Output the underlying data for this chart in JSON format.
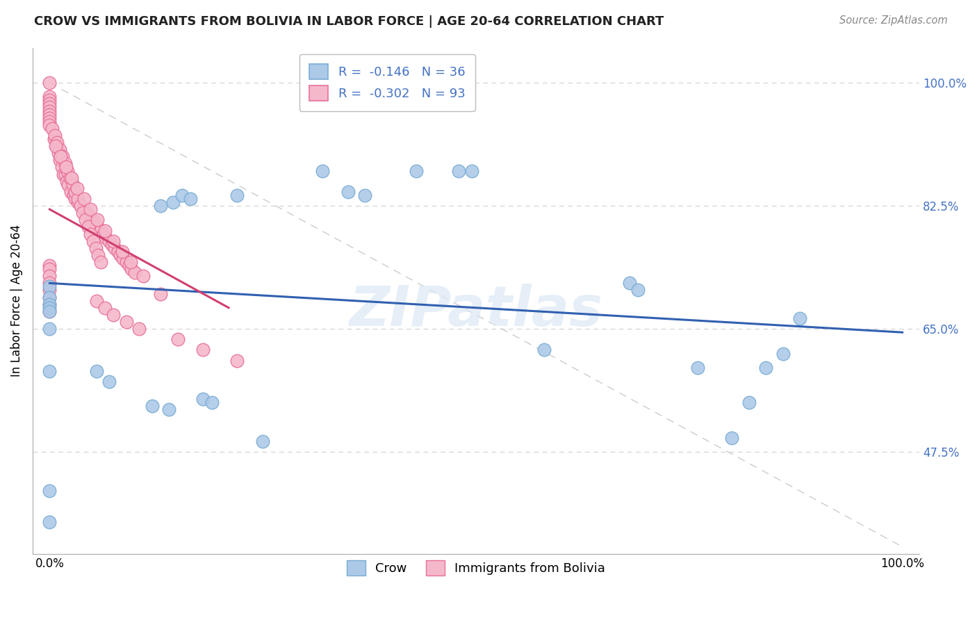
{
  "title": "CROW VS IMMIGRANTS FROM BOLIVIA IN LABOR FORCE | AGE 20-64 CORRELATION CHART",
  "source": "Source: ZipAtlas.com",
  "ylabel": "In Labor Force | Age 20-64",
  "xlim": [
    -0.02,
    1.02
  ],
  "ylim": [
    0.33,
    1.05
  ],
  "yticks": [
    0.475,
    0.65,
    0.825,
    1.0
  ],
  "ytick_labels": [
    "47.5%",
    "65.0%",
    "82.5%",
    "100.0%"
  ],
  "crow_R": -0.146,
  "crow_N": 36,
  "bolivia_R": -0.302,
  "bolivia_N": 93,
  "crow_color": "#adc9e8",
  "crow_edge_color": "#7aadd4",
  "bolivia_color": "#f5b8cb",
  "bolivia_edge_color": "#e87098",
  "trend_blue": "#3060b0",
  "trend_pink": "#d04070",
  "watermark": "ZIPatlas",
  "legend_label_crow": "Crow",
  "legend_label_bolivia": "Immigrants from Bolivia",
  "crow_x": [
    0.0,
    0.0,
    0.0,
    0.0,
    0.0,
    0.0,
    0.0,
    0.055,
    0.07,
    0.13,
    0.145,
    0.155,
    0.165,
    0.22,
    0.32,
    0.35,
    0.37,
    0.43,
    0.48,
    0.495,
    0.58,
    0.68,
    0.69,
    0.76,
    0.8,
    0.82,
    0.84,
    0.86,
    0.88,
    0.12,
    0.14,
    0.0,
    0.0,
    0.18,
    0.19,
    0.25
  ],
  "crow_y": [
    0.71,
    0.695,
    0.685,
    0.68,
    0.675,
    0.65,
    0.59,
    0.59,
    0.575,
    0.825,
    0.83,
    0.84,
    0.835,
    0.84,
    0.875,
    0.845,
    0.84,
    0.875,
    0.875,
    0.875,
    0.62,
    0.715,
    0.705,
    0.595,
    0.495,
    0.545,
    0.595,
    0.615,
    0.665,
    0.54,
    0.535,
    0.42,
    0.375,
    0.55,
    0.545,
    0.49
  ],
  "bolivia_x": [
    0.0,
    0.0,
    0.0,
    0.0,
    0.0,
    0.0,
    0.0,
    0.0,
    0.0,
    0.0,
    0.005,
    0.008,
    0.01,
    0.012,
    0.014,
    0.016,
    0.018,
    0.02,
    0.022,
    0.025,
    0.028,
    0.03,
    0.033,
    0.036,
    0.04,
    0.043,
    0.046,
    0.05,
    0.053,
    0.056,
    0.06,
    0.063,
    0.066,
    0.07,
    0.073,
    0.076,
    0.08,
    0.083,
    0.086,
    0.09,
    0.093,
    0.096,
    0.1,
    0.003,
    0.006,
    0.009,
    0.012,
    0.015,
    0.018,
    0.021,
    0.024,
    0.027,
    0.03,
    0.033,
    0.036,
    0.039,
    0.042,
    0.045,
    0.048,
    0.051,
    0.054,
    0.057,
    0.06,
    0.007,
    0.013,
    0.019,
    0.026,
    0.032,
    0.04,
    0.048,
    0.056,
    0.065,
    0.075,
    0.085,
    0.095,
    0.11,
    0.13,
    0.0,
    0.0,
    0.0,
    0.0,
    0.0,
    0.0,
    0.0,
    0.0,
    0.055,
    0.065,
    0.075,
    0.09,
    0.105,
    0.15,
    0.18,
    0.22
  ],
  "bolivia_y": [
    1.0,
    0.98,
    0.975,
    0.97,
    0.965,
    0.96,
    0.955,
    0.95,
    0.945,
    0.94,
    0.92,
    0.91,
    0.9,
    0.89,
    0.88,
    0.87,
    0.87,
    0.86,
    0.855,
    0.845,
    0.84,
    0.835,
    0.83,
    0.825,
    0.82,
    0.815,
    0.81,
    0.805,
    0.8,
    0.795,
    0.79,
    0.785,
    0.78,
    0.775,
    0.77,
    0.765,
    0.76,
    0.755,
    0.75,
    0.745,
    0.74,
    0.735,
    0.73,
    0.935,
    0.925,
    0.915,
    0.905,
    0.895,
    0.885,
    0.875,
    0.865,
    0.855,
    0.845,
    0.835,
    0.825,
    0.815,
    0.805,
    0.795,
    0.785,
    0.775,
    0.765,
    0.755,
    0.745,
    0.91,
    0.895,
    0.88,
    0.865,
    0.85,
    0.835,
    0.82,
    0.805,
    0.79,
    0.775,
    0.76,
    0.745,
    0.725,
    0.7,
    0.74,
    0.735,
    0.725,
    0.715,
    0.705,
    0.695,
    0.685,
    0.675,
    0.69,
    0.68,
    0.67,
    0.66,
    0.65,
    0.635,
    0.62,
    0.605
  ],
  "blue_trend_x": [
    0.0,
    1.0
  ],
  "blue_trend_y": [
    0.715,
    0.645
  ],
  "pink_trend_x": [
    0.0,
    0.21
  ],
  "pink_trend_y": [
    0.82,
    0.68
  ]
}
